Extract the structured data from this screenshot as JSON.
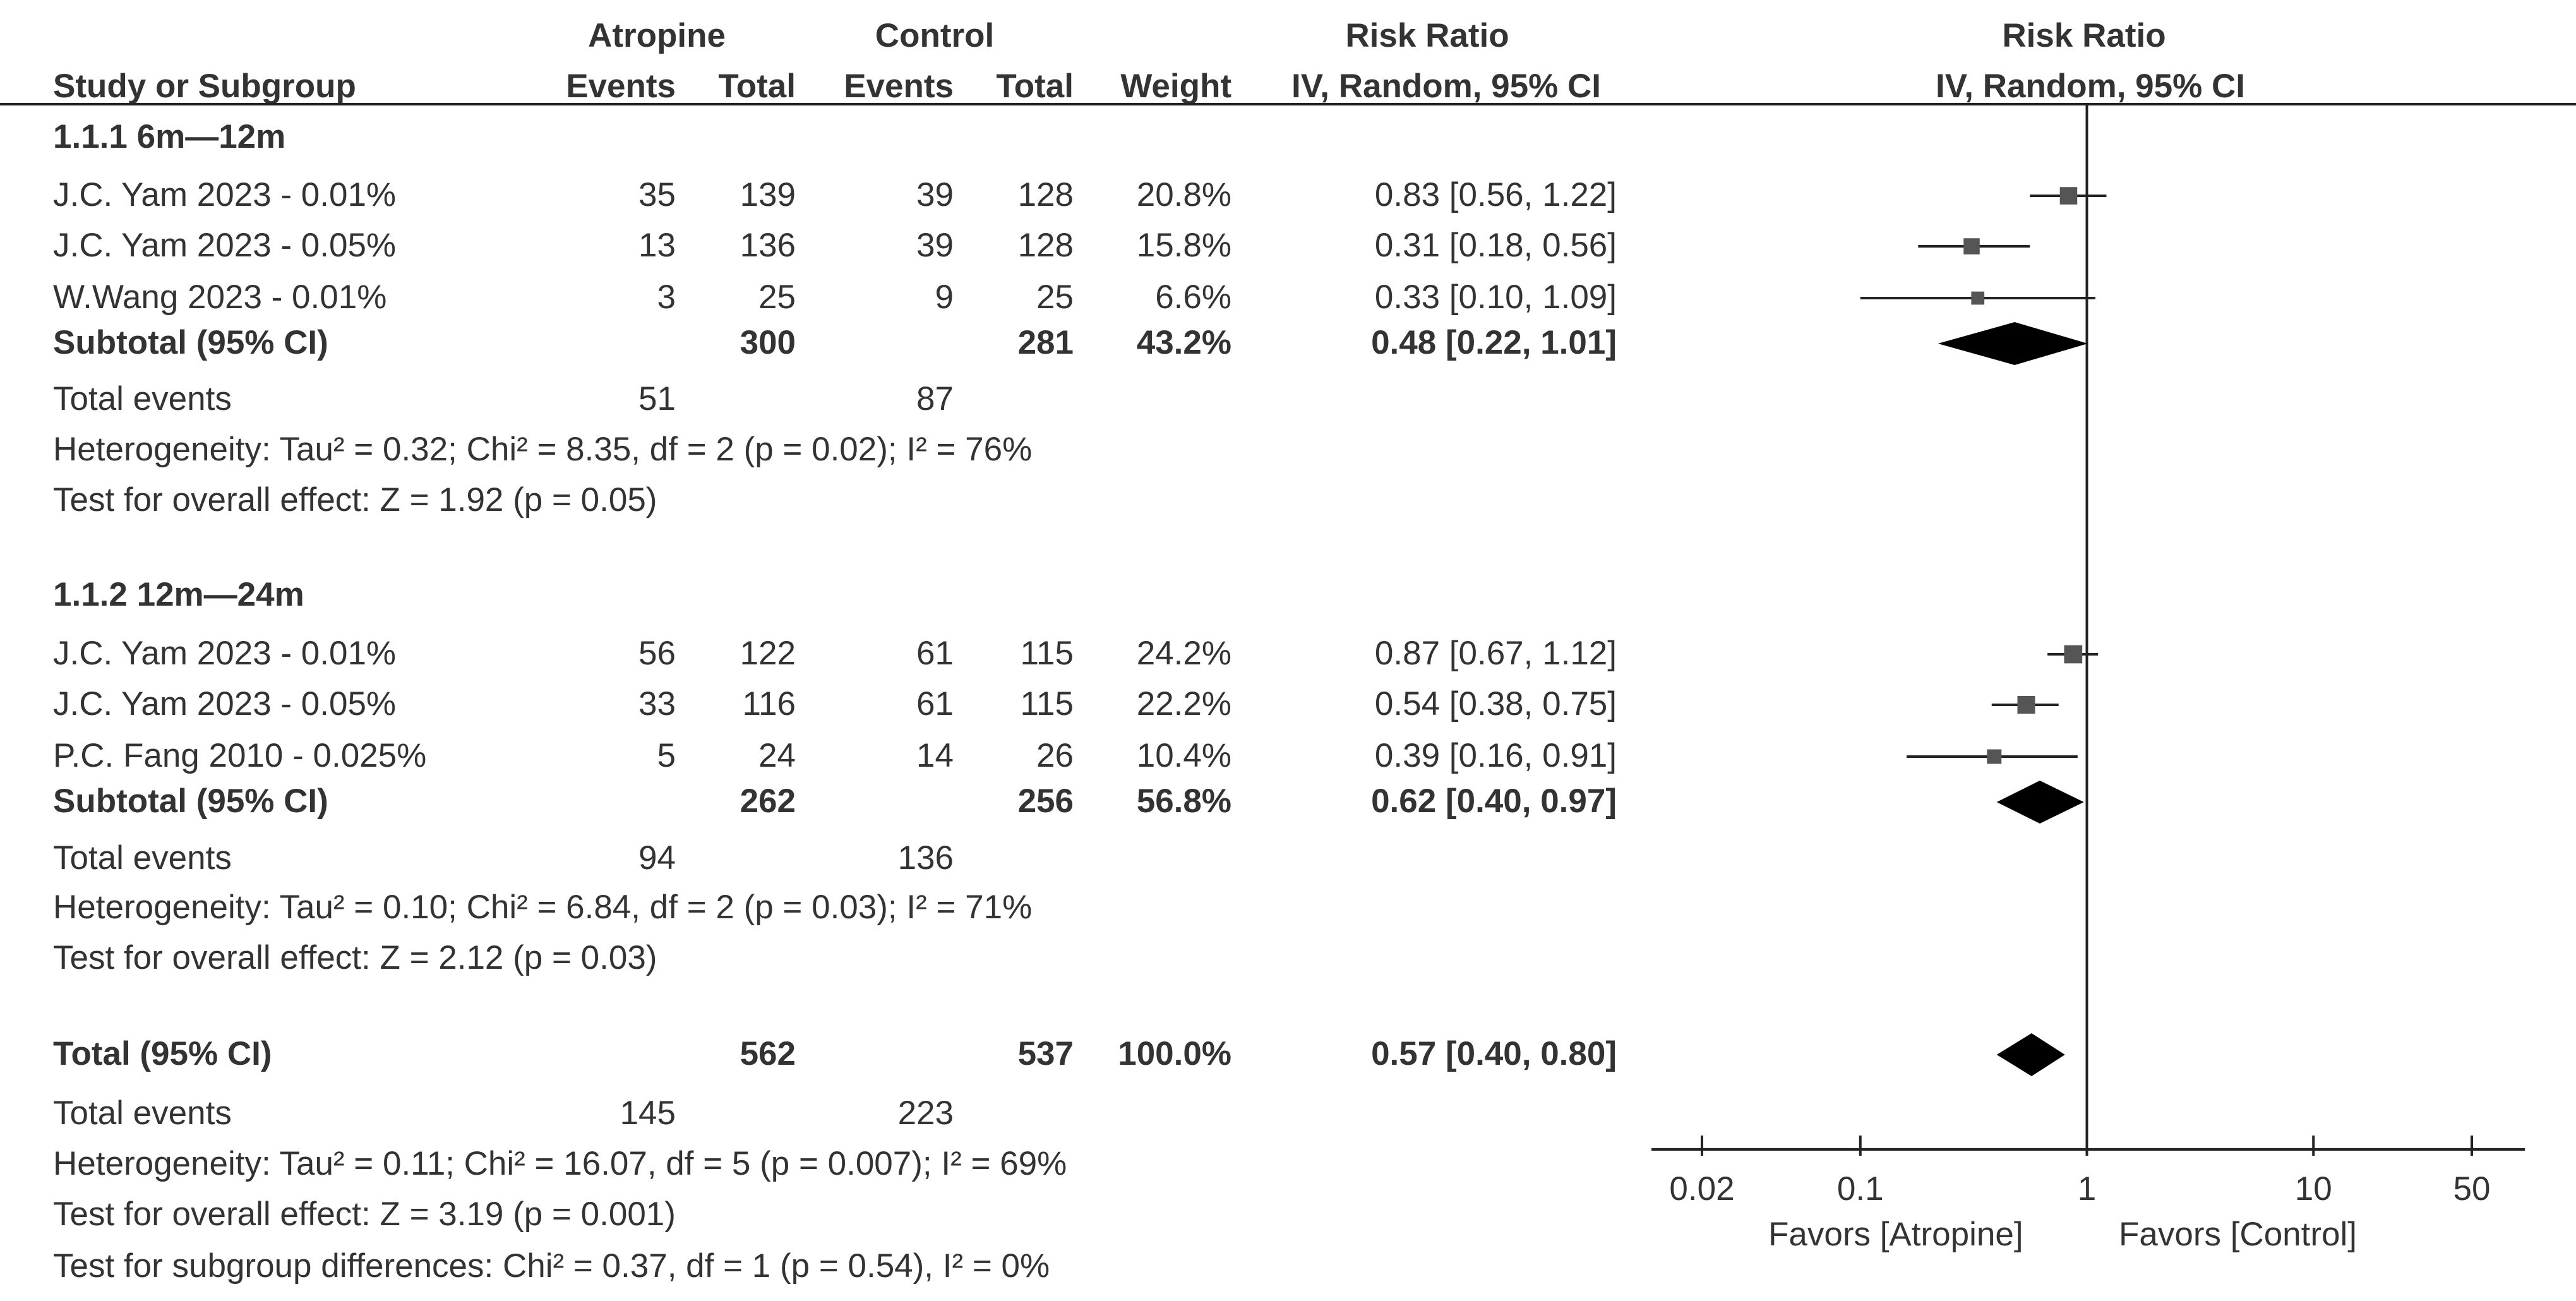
{
  "header": {
    "group1": "Atropine",
    "group2": "Control",
    "rr_title": "Risk Ratio",
    "rr_method": "IV, Random, 95% CI",
    "plot_title": "Risk Ratio",
    "plot_method": "IV, Random, 95% CI",
    "col_study": "Study or Subgroup",
    "col_events1": "Events",
    "col_total1": "Total",
    "col_events2": "Events",
    "col_total2": "Total",
    "col_weight": "Weight"
  },
  "subgroups": [
    {
      "title": "1.1.1 6m—12m",
      "studies": [
        {
          "name": "J.C. Yam 2023 - 0.01%",
          "e1": "35",
          "t1": "139",
          "e2": "39",
          "t2": "128",
          "w": "20.8%",
          "ci": "0.83 [0.56, 1.22]"
        },
        {
          "name": "J.C. Yam 2023 - 0.05%",
          "e1": "13",
          "t1": "136",
          "e2": "39",
          "t2": "128",
          "w": "15.8%",
          "ci": "0.31 [0.18, 0.56]"
        },
        {
          "name": "W.Wang 2023 - 0.01%",
          "e1": "3",
          "t1": "25",
          "e2": "9",
          "t2": "25",
          "w": "6.6%",
          "ci": "0.33 [0.10, 1.09]"
        }
      ],
      "subtotal": {
        "label": "Subtotal (95% CI)",
        "t1": "300",
        "t2": "281",
        "w": "43.2%",
        "ci": "0.48 [0.22, 1.01]"
      },
      "events": {
        "label": "Total events",
        "e1": "51",
        "e2": "87"
      },
      "heterogeneity": "Heterogeneity: Tau² = 0.32; Chi² = 8.35, df = 2 (p = 0.02); I² = 76%",
      "overall": "Test for overall effect: Z = 1.92 (p = 0.05)"
    },
    {
      "title": "1.1.2 12m—24m",
      "studies": [
        {
          "name": "J.C. Yam 2023 - 0.01%",
          "e1": "56",
          "t1": "122",
          "e2": "61",
          "t2": "115",
          "w": "24.2%",
          "ci": "0.87 [0.67, 1.12]"
        },
        {
          "name": "J.C. Yam 2023 - 0.05%",
          "e1": "33",
          "t1": "116",
          "e2": "61",
          "t2": "115",
          "w": "22.2%",
          "ci": "0.54 [0.38, 0.75]"
        },
        {
          "name": "P.C. Fang 2010 - 0.025%",
          "e1": "5",
          "t1": "24",
          "e2": "14",
          "t2": "26",
          "w": "10.4%",
          "ci": "0.39 [0.16, 0.91]"
        }
      ],
      "subtotal": {
        "label": "Subtotal (95% CI)",
        "t1": "262",
        "t2": "256",
        "w": "56.8%",
        "ci": "0.62 [0.40, 0.97]"
      },
      "events": {
        "label": "Total events",
        "e1": "94",
        "e2": "136"
      },
      "heterogeneity": "Heterogeneity: Tau² = 0.10; Chi² = 6.84, df = 2 (p = 0.03); I² = 71%",
      "overall": "Test for overall effect: Z = 2.12 (p = 0.03)"
    }
  ],
  "total": {
    "label": "Total (95% CI)",
    "t1": "562",
    "t2": "537",
    "w": "100.0%",
    "ci": "0.57 [0.40, 0.80]",
    "events": {
      "label": "Total events",
      "e1": "145",
      "e2": "223"
    },
    "heterogeneity": "Heterogeneity: Tau² = 0.11; Chi² = 16.07, df = 5 (p = 0.007); I² = 69%",
    "overall": "Test for overall effect: Z = 3.19 (p = 0.001)",
    "subgroup_diff": "Test for subgroup differences: Chi² = 0.37, df = 1 (p = 0.54), I² = 0%"
  },
  "chart_data": {
    "type": "forest",
    "scale": "log",
    "xlim": [
      0.02,
      50
    ],
    "ticks": [
      0.02,
      0.1,
      1,
      10,
      50
    ],
    "tick_labels": [
      "0.02",
      "0.1",
      "1",
      "10",
      "50"
    ],
    "reference_line": 1,
    "favors_left": "Favors [Atropine]",
    "favors_right": "Favors [Control]",
    "studies": [
      {
        "group": 0,
        "rr": 0.83,
        "lo": 0.56,
        "hi": 1.22,
        "weight": 20.8
      },
      {
        "group": 0,
        "rr": 0.31,
        "lo": 0.18,
        "hi": 0.56,
        "weight": 15.8
      },
      {
        "group": 0,
        "rr": 0.33,
        "lo": 0.1,
        "hi": 1.09,
        "weight": 6.6
      },
      {
        "group": 1,
        "rr": 0.87,
        "lo": 0.67,
        "hi": 1.12,
        "weight": 24.2
      },
      {
        "group": 1,
        "rr": 0.54,
        "lo": 0.38,
        "hi": 0.75,
        "weight": 22.2
      },
      {
        "group": 1,
        "rr": 0.39,
        "lo": 0.16,
        "hi": 0.91,
        "weight": 10.4
      }
    ],
    "diamonds": [
      {
        "label": "Subtotal 1.1.1",
        "rr": 0.48,
        "lo": 0.22,
        "hi": 1.01
      },
      {
        "label": "Subtotal 1.1.2",
        "rr": 0.62,
        "lo": 0.4,
        "hi": 0.97
      },
      {
        "label": "Total",
        "rr": 0.57,
        "lo": 0.4,
        "hi": 0.8
      }
    ]
  }
}
